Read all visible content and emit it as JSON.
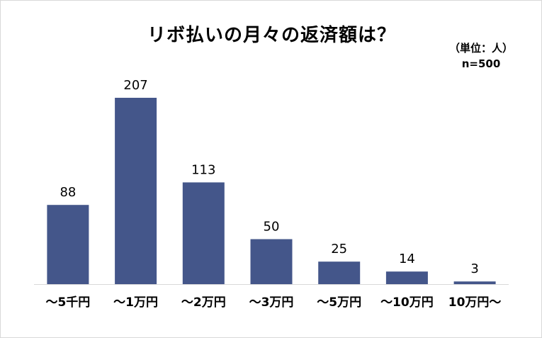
{
  "chart_data": {
    "type": "bar",
    "title": "リボ払いの月々の返済額は？",
    "unit_note": "（単位：人）",
    "sample_note": "n=500",
    "categories": [
      "～5千円",
      "～1万円",
      "～2万円",
      "～3万円",
      "～5万円",
      "～10万円",
      "10万円～"
    ],
    "values": [
      88,
      207,
      113,
      50,
      25,
      14,
      3
    ],
    "value_labels": [
      "88",
      "207",
      "113",
      "50",
      "25",
      "14",
      "3"
    ],
    "ylim": [
      0,
      207
    ],
    "grid": false,
    "legend": "none",
    "bar_color": "#44568a",
    "axis_color": "#d9d9d9"
  }
}
